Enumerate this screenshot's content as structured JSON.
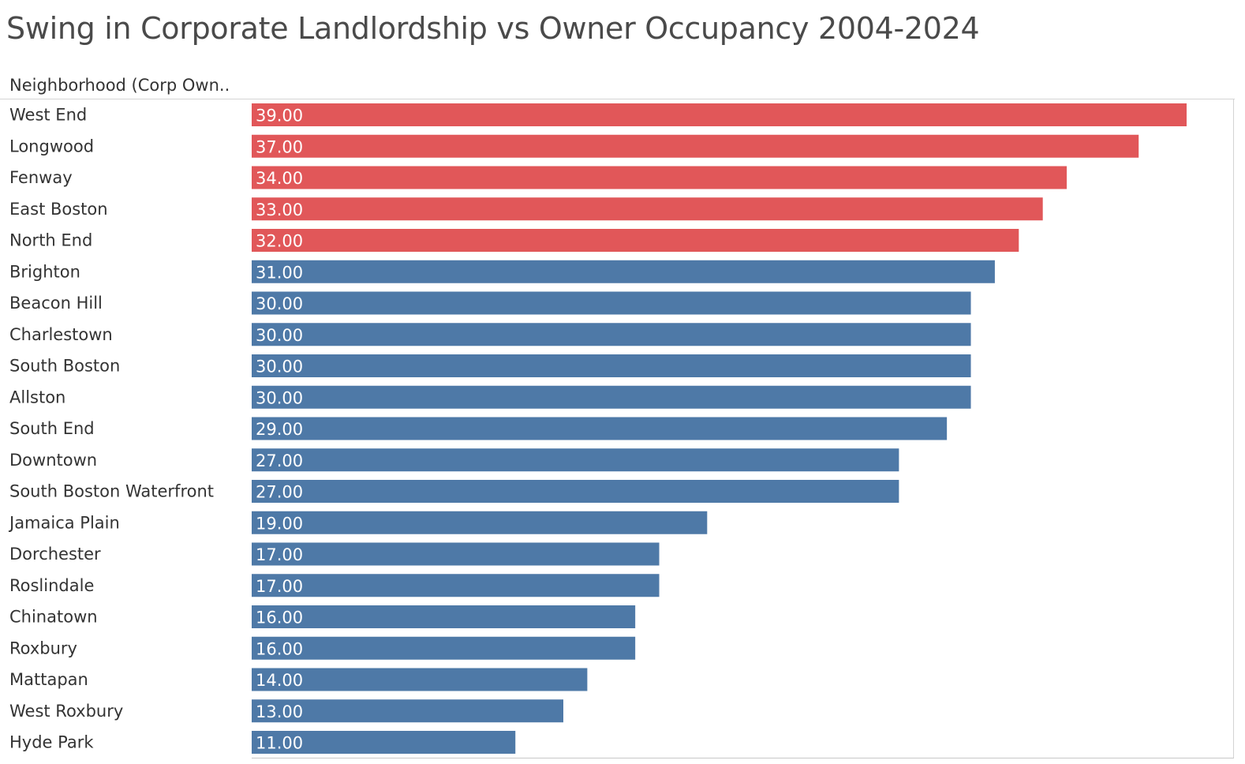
{
  "title": "Swing in Corporate Landlordship vs Owner Occupancy 2004-2024",
  "column_header": "Neighborhood (Corp Own..",
  "colors": {
    "highlight": "#e15759",
    "base": "#4e79a7",
    "title": "#4a4a4a",
    "text": "#333333",
    "rule": "#d4d4d4"
  },
  "chart_data": {
    "type": "bar",
    "orientation": "horizontal",
    "categories": [
      "West End",
      "Longwood",
      "Fenway",
      "East Boston",
      "North End",
      "Brighton",
      "Beacon Hill",
      "Charlestown",
      "South Boston",
      "Allston",
      "South End",
      "Downtown",
      "South Boston Waterfront",
      "Jamaica Plain",
      "Dorchester",
      "Roslindale",
      "Chinatown",
      "Roxbury",
      "Mattapan",
      "West Roxbury",
      "Hyde Park"
    ],
    "values": [
      39,
      37,
      34,
      33,
      32,
      31,
      30,
      30,
      30,
      30,
      29,
      27,
      27,
      19,
      17,
      17,
      16,
      16,
      14,
      13,
      11
    ],
    "value_labels": [
      "39.00",
      "37.00",
      "34.00",
      "33.00",
      "32.00",
      "31.00",
      "30.00",
      "30.00",
      "30.00",
      "30.00",
      "29.00",
      "27.00",
      "27.00",
      "19.00",
      "17.00",
      "17.00",
      "16.00",
      "16.00",
      "14.00",
      "13.00",
      "11.00"
    ],
    "highlighted_top_n": 5,
    "xlim": [
      0,
      39
    ],
    "grid": false
  }
}
